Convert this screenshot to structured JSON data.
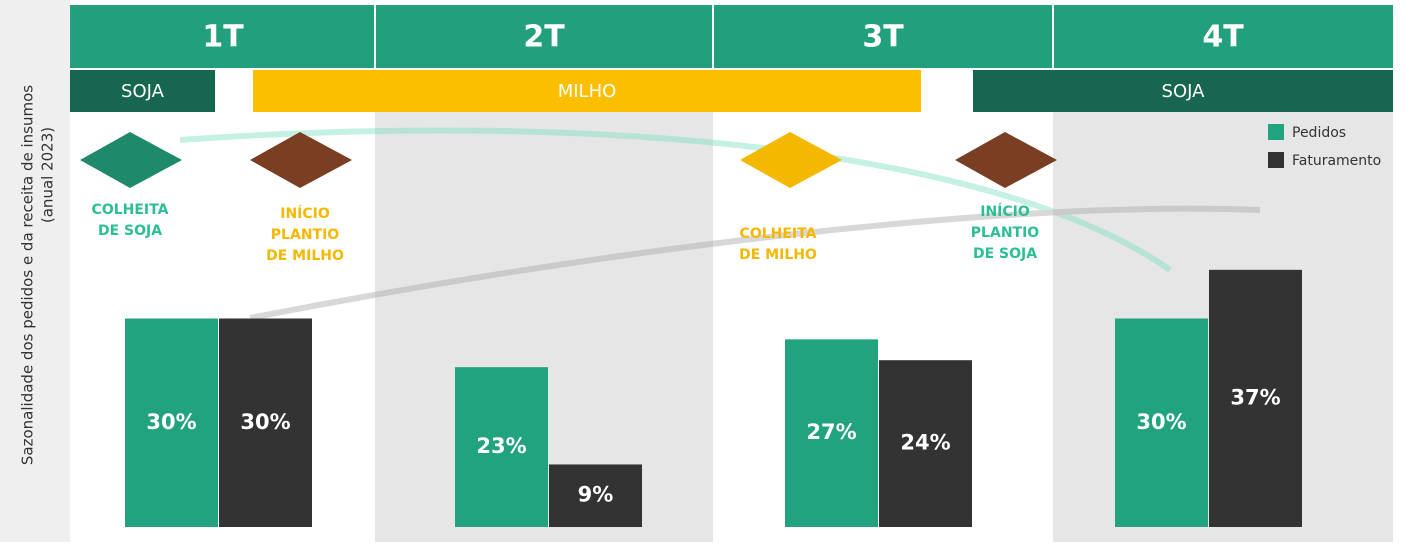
{
  "chart_data": {
    "type": "bar",
    "ylabel_lines": [
      "Sazonalidade dos pedidos e da receita de insumos",
      "(anual 2023)"
    ],
    "categories": [
      "1T",
      "2T",
      "3T",
      "4T"
    ],
    "seasons": [
      {
        "label": "SOJA",
        "color": "#17664f"
      },
      {
        "label": "MILHO",
        "color": "#fbbf00"
      },
      {
        "label": "SOJA",
        "color": "#17664f"
      }
    ],
    "annotations": [
      {
        "lines": [
          "COLHEITA",
          "DE SOJA"
        ],
        "color": "#2bbf95"
      },
      {
        "lines": [
          "INÍCIO",
          "PLANTIO",
          "DE MILHO"
        ],
        "color": "#f5b800"
      },
      {
        "lines": [
          "COLHEITA",
          "DE MILHO"
        ],
        "color": "#f5b800"
      },
      {
        "lines": [
          "INÍCIO",
          "PLANTIO",
          "DE SOJA"
        ],
        "color": "#2bbf95"
      }
    ],
    "series": [
      {
        "name": "Pedidos",
        "color": "#22a37f",
        "values": [
          30,
          23,
          27,
          30
        ],
        "value_labels": [
          "30%",
          "23%",
          "27%",
          "30%"
        ]
      },
      {
        "name": "Faturamento",
        "color": "#333333",
        "values": [
          30,
          9,
          24,
          37
        ],
        "value_labels": [
          "30%",
          "9%",
          "24%",
          "37%"
        ]
      }
    ]
  }
}
